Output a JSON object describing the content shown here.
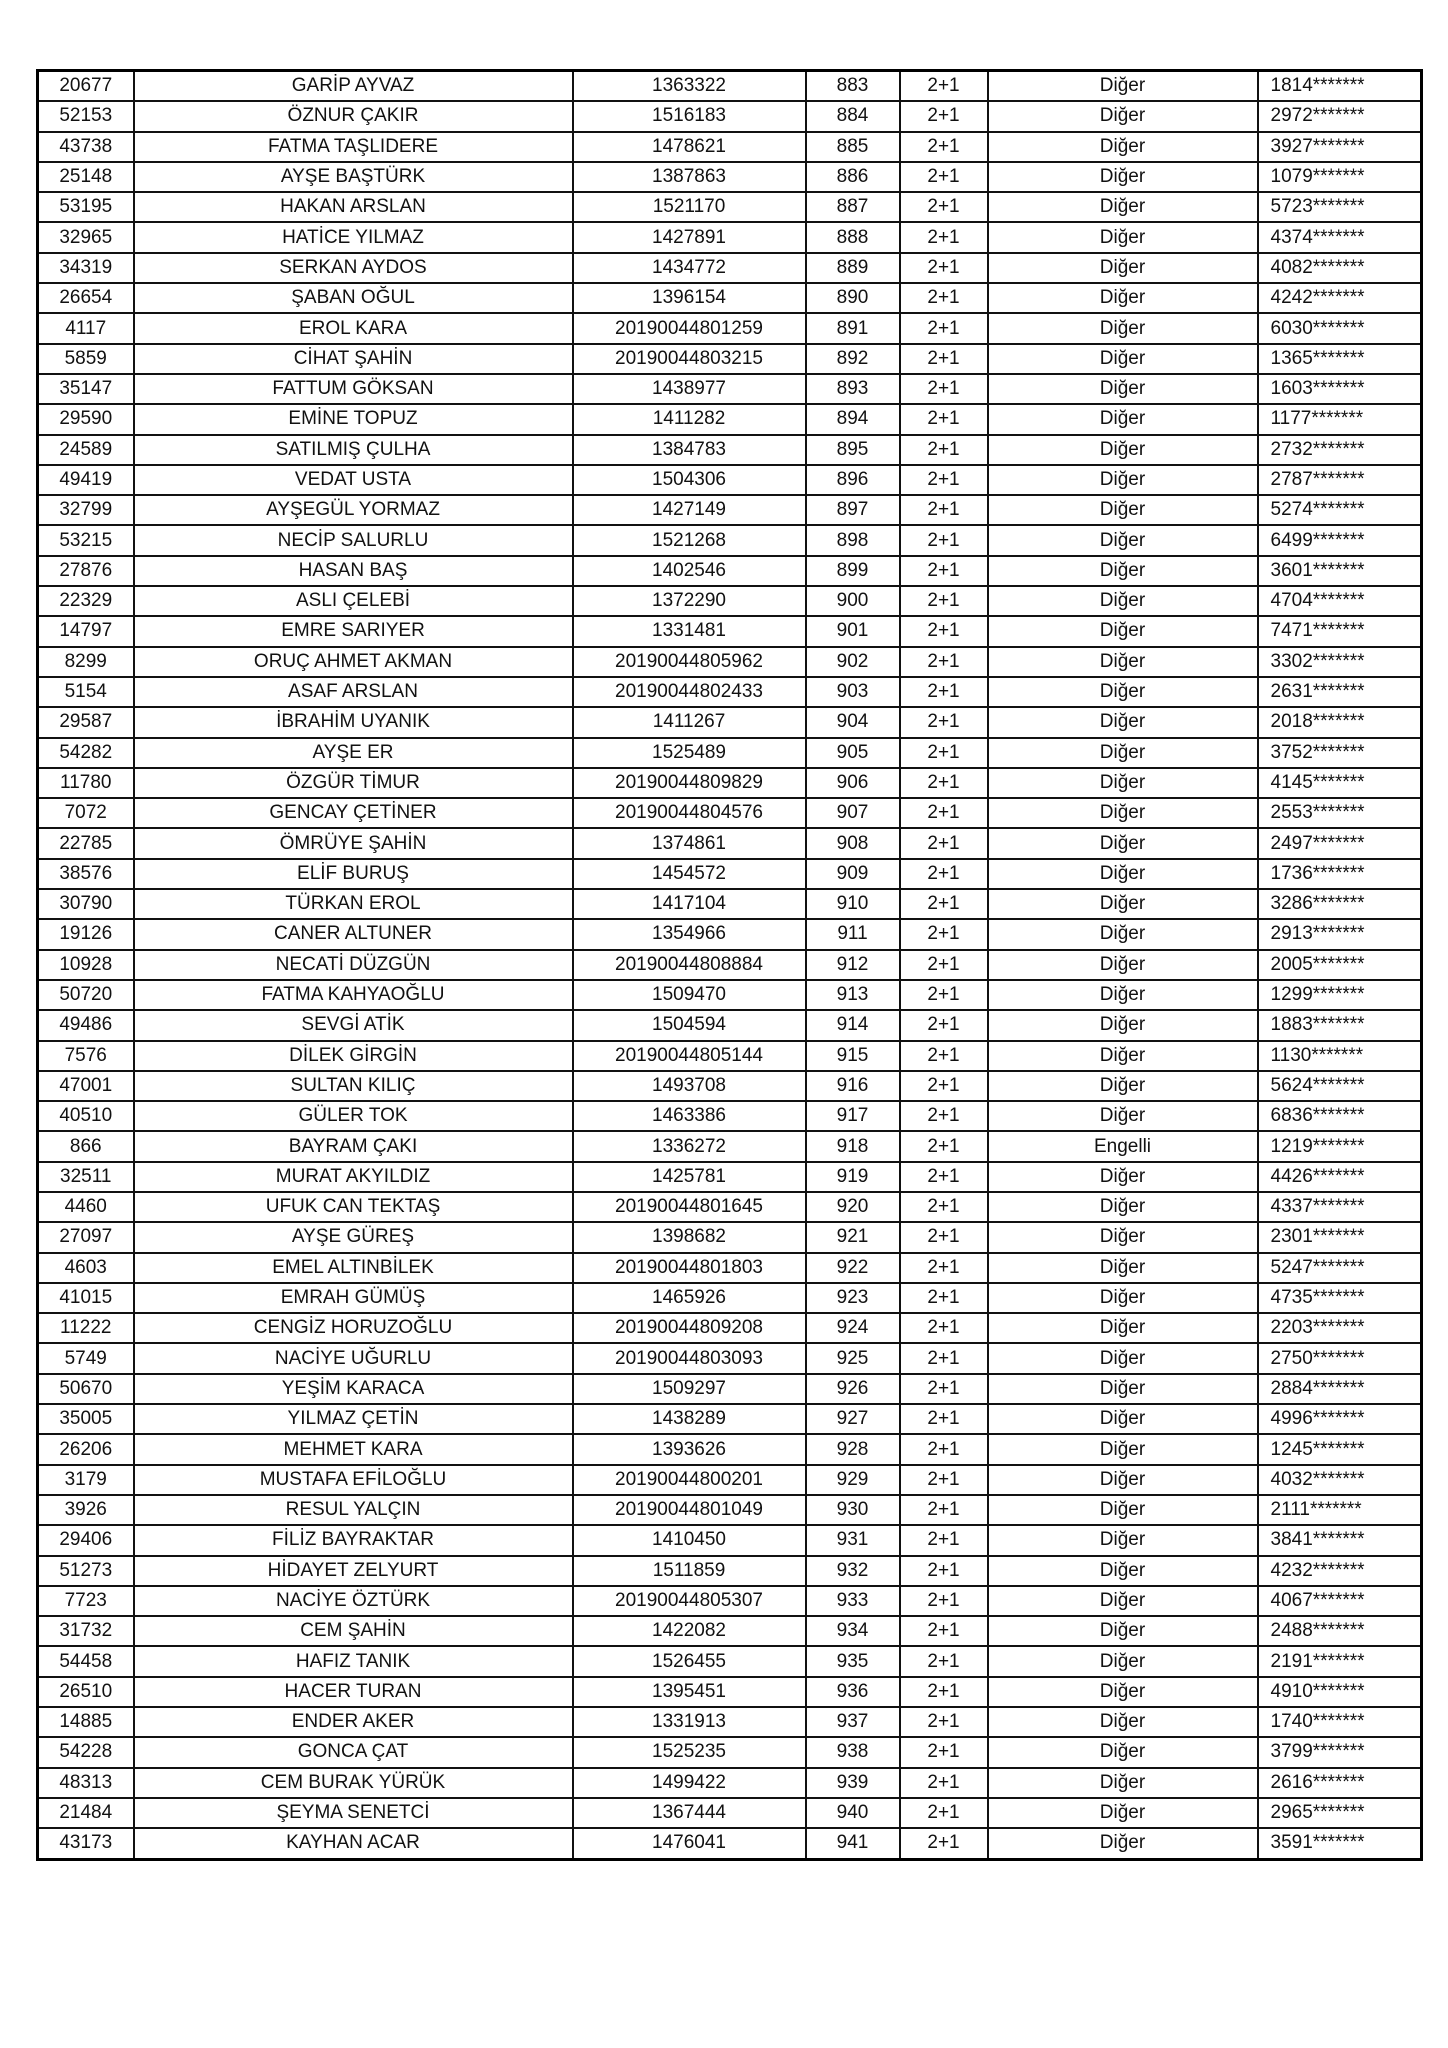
{
  "rows": [
    [
      "20677",
      "GARİP AYVAZ",
      "1363322",
      "883",
      "2+1",
      "Diğer",
      "1814*******"
    ],
    [
      "52153",
      "ÖZNUR ÇAKIR",
      "1516183",
      "884",
      "2+1",
      "Diğer",
      "2972*******"
    ],
    [
      "43738",
      "FATMA TAŞLIDERE",
      "1478621",
      "885",
      "2+1",
      "Diğer",
      "3927*******"
    ],
    [
      "25148",
      "AYŞE BAŞTÜRK",
      "1387863",
      "886",
      "2+1",
      "Diğer",
      "1079*******"
    ],
    [
      "53195",
      "HAKAN ARSLAN",
      "1521170",
      "887",
      "2+1",
      "Diğer",
      "5723*******"
    ],
    [
      "32965",
      "HATİCE YILMAZ",
      "1427891",
      "888",
      "2+1",
      "Diğer",
      "4374*******"
    ],
    [
      "34319",
      "SERKAN AYDOS",
      "1434772",
      "889",
      "2+1",
      "Diğer",
      "4082*******"
    ],
    [
      "26654",
      "ŞABAN OĞUL",
      "1396154",
      "890",
      "2+1",
      "Diğer",
      "4242*******"
    ],
    [
      "4117",
      "EROL KARA",
      "20190044801259",
      "891",
      "2+1",
      "Diğer",
      "6030*******"
    ],
    [
      "5859",
      "CİHAT ŞAHİN",
      "20190044803215",
      "892",
      "2+1",
      "Diğer",
      "1365*******"
    ],
    [
      "35147",
      "FATTUM GÖKSAN",
      "1438977",
      "893",
      "2+1",
      "Diğer",
      "1603*******"
    ],
    [
      "29590",
      "EMİNE TOPUZ",
      "1411282",
      "894",
      "2+1",
      "Diğer",
      "1177*******"
    ],
    [
      "24589",
      "SATILMIŞ ÇULHA",
      "1384783",
      "895",
      "2+1",
      "Diğer",
      "2732*******"
    ],
    [
      "49419",
      "VEDAT USTA",
      "1504306",
      "896",
      "2+1",
      "Diğer",
      "2787*******"
    ],
    [
      "32799",
      "AYŞEGÜL YORMAZ",
      "1427149",
      "897",
      "2+1",
      "Diğer",
      "5274*******"
    ],
    [
      "53215",
      "NECİP SALURLU",
      "1521268",
      "898",
      "2+1",
      "Diğer",
      "6499*******"
    ],
    [
      "27876",
      "HASAN BAŞ",
      "1402546",
      "899",
      "2+1",
      "Diğer",
      "3601*******"
    ],
    [
      "22329",
      "ASLI ÇELEBİ",
      "1372290",
      "900",
      "2+1",
      "Diğer",
      "4704*******"
    ],
    [
      "14797",
      "EMRE SARIYER",
      "1331481",
      "901",
      "2+1",
      "Diğer",
      "7471*******"
    ],
    [
      "8299",
      "ORUÇ AHMET AKMAN",
      "20190044805962",
      "902",
      "2+1",
      "Diğer",
      "3302*******"
    ],
    [
      "5154",
      "ASAF ARSLAN",
      "20190044802433",
      "903",
      "2+1",
      "Diğer",
      "2631*******"
    ],
    [
      "29587",
      "İBRAHİM UYANIK",
      "1411267",
      "904",
      "2+1",
      "Diğer",
      "2018*******"
    ],
    [
      "54282",
      "AYŞE ER",
      "1525489",
      "905",
      "2+1",
      "Diğer",
      "3752*******"
    ],
    [
      "11780",
      "ÖZGÜR TİMUR",
      "20190044809829",
      "906",
      "2+1",
      "Diğer",
      "4145*******"
    ],
    [
      "7072",
      "GENCAY ÇETİNER",
      "20190044804576",
      "907",
      "2+1",
      "Diğer",
      "2553*******"
    ],
    [
      "22785",
      "ÖMRÜYE ŞAHİN",
      "1374861",
      "908",
      "2+1",
      "Diğer",
      "2497*******"
    ],
    [
      "38576",
      "ELİF BURUŞ",
      "1454572",
      "909",
      "2+1",
      "Diğer",
      "1736*******"
    ],
    [
      "30790",
      "TÜRKAN EROL",
      "1417104",
      "910",
      "2+1",
      "Diğer",
      "3286*******"
    ],
    [
      "19126",
      "CANER ALTUNER",
      "1354966",
      "911",
      "2+1",
      "Diğer",
      "2913*******"
    ],
    [
      "10928",
      "NECATİ DÜZGÜN",
      "20190044808884",
      "912",
      "2+1",
      "Diğer",
      "2005*******"
    ],
    [
      "50720",
      "FATMA KAHYAOĞLU",
      "1509470",
      "913",
      "2+1",
      "Diğer",
      "1299*******"
    ],
    [
      "49486",
      "SEVGİ ATİK",
      "1504594",
      "914",
      "2+1",
      "Diğer",
      "1883*******"
    ],
    [
      "7576",
      "DİLEK GİRGİN",
      "20190044805144",
      "915",
      "2+1",
      "Diğer",
      "1130*******"
    ],
    [
      "47001",
      "SULTAN KILIÇ",
      "1493708",
      "916",
      "2+1",
      "Diğer",
      "5624*******"
    ],
    [
      "40510",
      "GÜLER TOK",
      "1463386",
      "917",
      "2+1",
      "Diğer",
      "6836*******"
    ],
    [
      "866",
      "BAYRAM ÇAKI",
      "1336272",
      "918",
      "2+1",
      "Engelli",
      "1219*******"
    ],
    [
      "32511",
      "MURAT AKYILDIZ",
      "1425781",
      "919",
      "2+1",
      "Diğer",
      "4426*******"
    ],
    [
      "4460",
      "UFUK CAN TEKTAŞ",
      "20190044801645",
      "920",
      "2+1",
      "Diğer",
      "4337*******"
    ],
    [
      "27097",
      "AYŞE GÜREŞ",
      "1398682",
      "921",
      "2+1",
      "Diğer",
      "2301*******"
    ],
    [
      "4603",
      "EMEL ALTINBİLEK",
      "20190044801803",
      "922",
      "2+1",
      "Diğer",
      "5247*******"
    ],
    [
      "41015",
      "EMRAH GÜMÜŞ",
      "1465926",
      "923",
      "2+1",
      "Diğer",
      "4735*******"
    ],
    [
      "11222",
      "CENGİZ HORUZOĞLU",
      "20190044809208",
      "924",
      "2+1",
      "Diğer",
      "2203*******"
    ],
    [
      "5749",
      "NACİYE UĞURLU",
      "20190044803093",
      "925",
      "2+1",
      "Diğer",
      "2750*******"
    ],
    [
      "50670",
      "YEŞİM KARACA",
      "1509297",
      "926",
      "2+1",
      "Diğer",
      "2884*******"
    ],
    [
      "35005",
      "YILMAZ ÇETİN",
      "1438289",
      "927",
      "2+1",
      "Diğer",
      "4996*******"
    ],
    [
      "26206",
      "MEHMET KARA",
      "1393626",
      "928",
      "2+1",
      "Diğer",
      "1245*******"
    ],
    [
      "3179",
      "MUSTAFA EFİLOĞLU",
      "20190044800201",
      "929",
      "2+1",
      "Diğer",
      "4032*******"
    ],
    [
      "3926",
      "RESUL YALÇIN",
      "20190044801049",
      "930",
      "2+1",
      "Diğer",
      "2111*******"
    ],
    [
      "29406",
      "FİLİZ BAYRAKTAR",
      "1410450",
      "931",
      "2+1",
      "Diğer",
      "3841*******"
    ],
    [
      "51273",
      "HİDAYET ZELYURT",
      "1511859",
      "932",
      "2+1",
      "Diğer",
      "4232*******"
    ],
    [
      "7723",
      "NACİYE ÖZTÜRK",
      "20190044805307",
      "933",
      "2+1",
      "Diğer",
      "4067*******"
    ],
    [
      "31732",
      "CEM ŞAHİN",
      "1422082",
      "934",
      "2+1",
      "Diğer",
      "2488*******"
    ],
    [
      "54458",
      "HAFIZ TANIK",
      "1526455",
      "935",
      "2+1",
      "Diğer",
      "2191*******"
    ],
    [
      "26510",
      "HACER TURAN",
      "1395451",
      "936",
      "2+1",
      "Diğer",
      "4910*******"
    ],
    [
      "14885",
      "ENDER AKER",
      "1331913",
      "937",
      "2+1",
      "Diğer",
      "1740*******"
    ],
    [
      "54228",
      "GONCA ÇAT",
      "1525235",
      "938",
      "2+1",
      "Diğer",
      "3799*******"
    ],
    [
      "48313",
      "CEM BURAK YÜRÜK",
      "1499422",
      "939",
      "2+1",
      "Diğer",
      "2616*******"
    ],
    [
      "21484",
      "ŞEYMA SENETCİ",
      "1367444",
      "940",
      "2+1",
      "Diğer",
      "2965*******"
    ],
    [
      "43173",
      "KAYHAN ACAR",
      "1476041",
      "941",
      "2+1",
      "Diğer",
      "3591*******"
    ]
  ]
}
